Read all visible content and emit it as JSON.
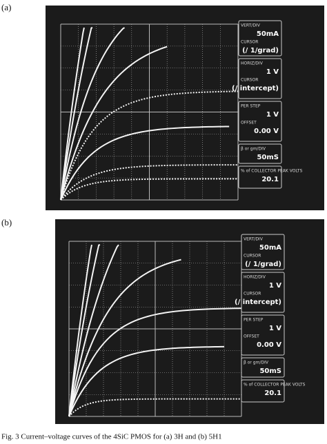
{
  "panels": [
    {
      "label": "(a)",
      "readouts": [
        [
          "VERT/DIV",
          "50mA",
          "CURSOR",
          "(/ 1/grad)"
        ],
        [
          "HORIZ/DIV",
          "1 V",
          "CURSOR",
          "(/ intercept)"
        ],
        [
          "PER STEP",
          "1 V",
          "OFFSET",
          "0.00 V"
        ],
        [
          "β or gm/DIV",
          "50mS"
        ],
        [
          "% of COLLECTOR PEAK VOLTS",
          "20.1"
        ]
      ]
    },
    {
      "label": "(b)",
      "readouts": [
        [
          "VERT/DIV",
          "50mA",
          "CURSOR",
          "(/ 1/grad)"
        ],
        [
          "HORIZ/DIV",
          "1 V",
          "CURSOR",
          "(/ intercept)"
        ],
        [
          "PER STEP",
          "1 V",
          "OFFSET",
          "0.00 V"
        ],
        [
          "β or gm/DIV",
          "50mS"
        ],
        [
          "% of COLLECTOR PEAK VOLTS",
          "20.1"
        ]
      ]
    }
  ],
  "caption": "Fig. 3    Current–voltage curves of the 4SiC PMOS for (a) 3H and (b) 5H1"
}
